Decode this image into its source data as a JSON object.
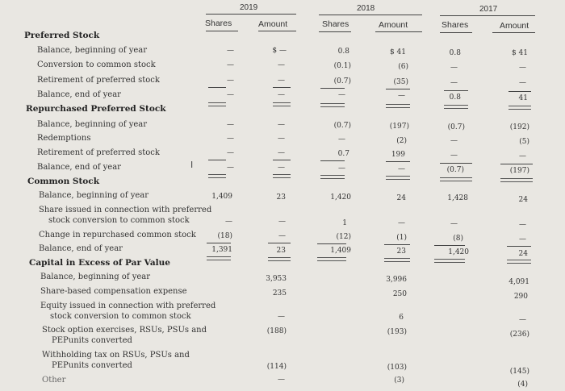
{
  "years": {
    "y2019": "2019",
    "y2018": "2018",
    "y2017": "2017"
  },
  "columns": {
    "s19": "Shares",
    "a19": "Amount",
    "s18": "Shares",
    "a18": "Amount",
    "s17": "Shares",
    "a17": "Amount"
  },
  "rows": [
    {
      "label": "Preferred Stock"
    },
    {
      "label": "Balance, beginning of year",
      "s19": "—",
      "a19": "$   —",
      "s18": "0.8",
      "a18": "$       41",
      "s17": "0.8",
      "a17": "$       41"
    },
    {
      "label": "Conversion to common stock",
      "s19": "—",
      "a19": "—",
      "s18": "(0.1)",
      "a18": "(6)",
      "s17": "—",
      "a17": "—"
    },
    {
      "label": "Retirement of preferred stock",
      "s19": "—",
      "a19": "—",
      "s18": "(0.7)",
      "a18": "(35)",
      "s17": "—",
      "a17": "—"
    },
    {
      "label": "Balance, end of year",
      "s19": "—",
      "a19": "—",
      "s18": "—",
      "a18": "—",
      "s17": "0.8",
      "a17": "41"
    },
    {
      "label": "Repurchased Preferred Stock"
    },
    {
      "label": "Balance, beginning of year",
      "s19": "—",
      "a19": "—",
      "s18": "(0.7)",
      "a18": "(197)",
      "s17": "(0.7)",
      "a17": "(192)"
    },
    {
      "label": "Redemptions",
      "s19": "—",
      "a19": "—",
      "s18": "—",
      "a18": "(2)",
      "s17": "—",
      "a17": "(5)"
    },
    {
      "label": "Retirement of preferred stock",
      "s19": "—",
      "a19": "—",
      "s18": "0.7",
      "a18": "199",
      "s17": "—",
      "a17": "—"
    },
    {
      "label": "Balance, end of year",
      "s19": "—",
      "a19": "—",
      "s18": "—",
      "a18": "—",
      "s17": "(0.7)",
      "a17": "(197)"
    },
    {
      "label": "Common Stock"
    },
    {
      "label": "Balance, beginning of year",
      "s19": "1,409",
      "a19": "23",
      "s18": "1,420",
      "a18": "24",
      "s17": "1,428",
      "a17": "24"
    },
    {
      "label": "Share issued in connection with preferred",
      "s19": "",
      "a19": "",
      "s18": "",
      "a18": "",
      "s17": "",
      "a17": ""
    },
    {
      "label": "stock conversion to common stock",
      "s19": "—",
      "a19": "—",
      "s18": "1",
      "a18": "—",
      "s17": "—",
      "a17": "—"
    },
    {
      "label": "Change in repurchased common stock",
      "s19": "(18)",
      "a19": "—",
      "s18": "(12)",
      "a18": "(1)",
      "s17": "(8)",
      "a17": "—"
    },
    {
      "label": "Balance, end of year",
      "s19": "1,391",
      "a19": "23",
      "s18": "1,409",
      "a18": "23",
      "s17": "1,420",
      "a17": "24"
    },
    {
      "label": "Capital in Excess of Par Value"
    },
    {
      "label": "Balance, beginning of year",
      "a19": "3,953",
      "a18": "3,996",
      "a17": "4,091"
    },
    {
      "label": "Share-based compensation expense",
      "a19": "235",
      "a18": "250",
      "a17": "290"
    },
    {
      "label": "Equity issued in connection with preferred",
      "a19": "",
      "a18": "",
      "a17": ""
    },
    {
      "label": "stock conversion to common stock",
      "a19": "—",
      "a18": "6",
      "a17": "—"
    },
    {
      "label": "Stock option exercises, RSUs, PSUs and",
      "a19": "(188)",
      "a18": "(193)",
      "a17": "(236)"
    },
    {
      "label": "PEPunits converted",
      "a19": "",
      "a18": "",
      "a17": ""
    },
    {
      "label": "Withholding tax on RSUs, PSUs and",
      "a19": "",
      "a18": "",
      "a17": ""
    },
    {
      "label": "PEPunits converted",
      "a19": "(114)",
      "a18": "(103)",
      "a17": "(145)"
    },
    {
      "label": "Other",
      "a19": "—",
      "a18": "(3)",
      "a17": "(4)"
    }
  ]
}
